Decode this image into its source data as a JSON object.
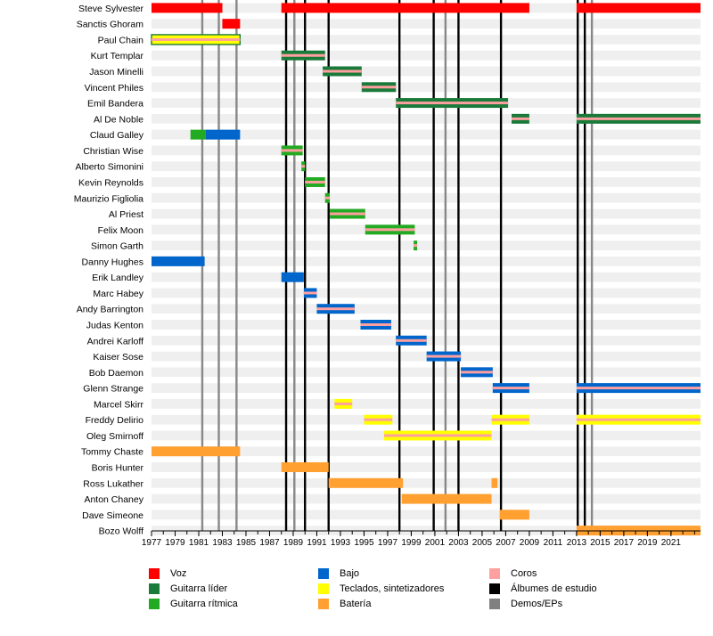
{
  "chart_data": {
    "type": "timeline",
    "x_axis": {
      "range": [
        1977,
        2023.5
      ],
      "tick_labels": [
        "1977",
        "1979",
        "1981",
        "1983",
        "1985",
        "1987",
        "1989",
        "1991",
        "1993",
        "1995",
        "1997",
        "1999",
        "2001",
        "2003",
        "2005",
        "2007",
        "2009",
        "2011",
        "2013",
        "2015",
        "2017",
        "2019",
        "2021"
      ]
    },
    "roles": [
      {
        "key": "voz",
        "label": "Voz",
        "color": "#ff0000"
      },
      {
        "key": "lider",
        "label": "Guitarra líder",
        "color": "#1a7a3a"
      },
      {
        "key": "ritmica",
        "label": "Guitarra rítmica",
        "color": "#22aa22"
      },
      {
        "key": "bajo",
        "label": "Bajo",
        "color": "#0066cc"
      },
      {
        "key": "teclados",
        "label": "Teclados, sintetizadores",
        "color": "#ffff00"
      },
      {
        "key": "bateria",
        "label": "Batería",
        "color": "#ffa030"
      },
      {
        "key": "coros",
        "label": "Coros",
        "color": "#ffa0a0"
      },
      {
        "key": "estudio",
        "label": "Álbumes de estudio",
        "color": "#000000"
      },
      {
        "key": "demos",
        "label": "Demos/EPs",
        "color": "#808080"
      }
    ],
    "studio_albums": [
      1988.4,
      1990.0,
      1992.0,
      1998.0,
      2000.9,
      2003.0,
      2006.6,
      2013.1,
      2013.7
    ],
    "demos_eps": [
      1981.3,
      1982.7,
      1984.2,
      1989.1,
      2001.9,
      2014.3
    ],
    "members": [
      {
        "name": "Steve Sylvester",
        "bars": [
          {
            "start": 1977,
            "end": 1983,
            "role": "voz"
          },
          {
            "start": 1988,
            "end": 2009,
            "role": "voz"
          },
          {
            "start": 2013,
            "end": 2023.5,
            "role": "voz"
          }
        ]
      },
      {
        "name": "Sanctis Ghoram",
        "bars": [
          {
            "start": 1983,
            "end": 1984.5,
            "role": "voz"
          }
        ]
      },
      {
        "name": "Paul Chain",
        "bars": [
          {
            "start": 1977,
            "end": 1984.5,
            "role": "teclados",
            "inner": "coros",
            "outline": "lider"
          }
        ]
      },
      {
        "name": "Kurt Templar",
        "bars": [
          {
            "start": 1988,
            "end": 1991.7,
            "role": "lider",
            "inner": "coros"
          }
        ]
      },
      {
        "name": "Jason Minelli",
        "bars": [
          {
            "start": 1991.5,
            "end": 1994.8,
            "role": "lider",
            "inner": "coros"
          }
        ]
      },
      {
        "name": "Vincent Philes",
        "bars": [
          {
            "start": 1994.8,
            "end": 1997.7,
            "role": "lider",
            "inner": "coros"
          }
        ]
      },
      {
        "name": "Emil Bandera",
        "bars": [
          {
            "start": 1997.7,
            "end": 2007.2,
            "role": "lider",
            "inner": "coros"
          }
        ]
      },
      {
        "name": "Al De Noble",
        "bars": [
          {
            "start": 2007.5,
            "end": 2009,
            "role": "lider",
            "inner": "coros"
          },
          {
            "start": 2013,
            "end": 2023.5,
            "role": "lider",
            "inner": "coros"
          }
        ]
      },
      {
        "name": "Claud Galley",
        "bars": [
          {
            "start": 1980.3,
            "end": 1981.6,
            "role": "ritmica"
          },
          {
            "start": 1981.6,
            "end": 1984.5,
            "role": "bajo"
          }
        ]
      },
      {
        "name": "Christian Wise",
        "bars": [
          {
            "start": 1988,
            "end": 1989.8,
            "role": "ritmica",
            "inner": "coros"
          }
        ]
      },
      {
        "name": "Alberto Simonini",
        "bars": [
          {
            "start": 1989.7,
            "end": 1990,
            "role": "ritmica",
            "inner": "coros"
          }
        ]
      },
      {
        "name": "Kevin Reynolds",
        "bars": [
          {
            "start": 1990,
            "end": 1991.7,
            "role": "ritmica",
            "inner": "coros"
          }
        ]
      },
      {
        "name": "Maurizio Figliolia",
        "bars": [
          {
            "start": 1991.7,
            "end": 1992.1,
            "role": "ritmica",
            "inner": "coros"
          }
        ]
      },
      {
        "name": "Al Priest",
        "bars": [
          {
            "start": 1992.1,
            "end": 1995.1,
            "role": "ritmica",
            "inner": "coros"
          }
        ]
      },
      {
        "name": "Felix Moon",
        "bars": [
          {
            "start": 1995.1,
            "end": 1999.3,
            "role": "ritmica",
            "inner": "coros"
          }
        ]
      },
      {
        "name": "Simon Garth",
        "bars": [
          {
            "start": 1999.2,
            "end": 1999.5,
            "role": "ritmica",
            "inner": "coros"
          }
        ]
      },
      {
        "name": "Danny Hughes",
        "bars": [
          {
            "start": 1977,
            "end": 1981.5,
            "role": "bajo"
          }
        ]
      },
      {
        "name": "Erik Landley",
        "bars": [
          {
            "start": 1988,
            "end": 1989.9,
            "role": "bajo"
          }
        ]
      },
      {
        "name": "Marc Habey",
        "bars": [
          {
            "start": 1989.9,
            "end": 1991,
            "role": "bajo",
            "inner": "coros"
          }
        ]
      },
      {
        "name": "Andy Barrington",
        "bars": [
          {
            "start": 1991,
            "end": 1994.2,
            "role": "bajo",
            "inner": "coros"
          }
        ]
      },
      {
        "name": "Judas Kenton",
        "bars": [
          {
            "start": 1994.7,
            "end": 1997.3,
            "role": "bajo",
            "inner": "coros"
          }
        ]
      },
      {
        "name": "Andrei Karloff",
        "bars": [
          {
            "start": 1997.7,
            "end": 2000.3,
            "role": "bajo",
            "inner": "coros"
          }
        ]
      },
      {
        "name": "Kaiser Sose",
        "bars": [
          {
            "start": 2000.3,
            "end": 2003.2,
            "role": "bajo",
            "inner": "coros"
          }
        ]
      },
      {
        "name": "Bob Daemon",
        "bars": [
          {
            "start": 2003.2,
            "end": 2005.9,
            "role": "bajo",
            "inner": "coros"
          }
        ]
      },
      {
        "name": "Glenn Strange",
        "bars": [
          {
            "start": 2005.9,
            "end": 2009,
            "role": "bajo",
            "inner": "coros"
          },
          {
            "start": 2013,
            "end": 2023.5,
            "role": "bajo",
            "inner": "coros"
          }
        ]
      },
      {
        "name": "Marcel Skirr",
        "bars": [
          {
            "start": 1992.5,
            "end": 1994,
            "role": "teclados",
            "inner": "coros"
          }
        ]
      },
      {
        "name": "Freddy Delirio",
        "bars": [
          {
            "start": 1995,
            "end": 1997.4,
            "role": "teclados",
            "inner": "coros"
          },
          {
            "start": 2005.8,
            "end": 2009,
            "role": "teclados",
            "inner": "coros"
          },
          {
            "start": 2013,
            "end": 2023.5,
            "role": "teclados",
            "inner": "coros"
          }
        ]
      },
      {
        "name": "Oleg Smirnoff",
        "bars": [
          {
            "start": 1996.7,
            "end": 2005.8,
            "role": "teclados",
            "inner": "coros"
          }
        ]
      },
      {
        "name": "Tommy Chaste",
        "bars": [
          {
            "start": 1977,
            "end": 1984.5,
            "role": "bateria"
          }
        ]
      },
      {
        "name": "Boris Hunter",
        "bars": [
          {
            "start": 1988,
            "end": 1992,
            "role": "bateria"
          }
        ]
      },
      {
        "name": "Ross Lukather",
        "bars": [
          {
            "start": 1992,
            "end": 1998.3,
            "role": "bateria"
          },
          {
            "start": 2005.8,
            "end": 2006.3,
            "role": "bateria"
          }
        ]
      },
      {
        "name": "Anton Chaney",
        "bars": [
          {
            "start": 1998.2,
            "end": 2005.8,
            "role": "bateria"
          }
        ]
      },
      {
        "name": "Dave Simeone",
        "bars": [
          {
            "start": 2006.5,
            "end": 2009,
            "role": "bateria"
          }
        ]
      },
      {
        "name": "Bozo Wolff",
        "bars": [
          {
            "start": 2013,
            "end": 2023.5,
            "role": "bateria"
          }
        ]
      }
    ]
  }
}
